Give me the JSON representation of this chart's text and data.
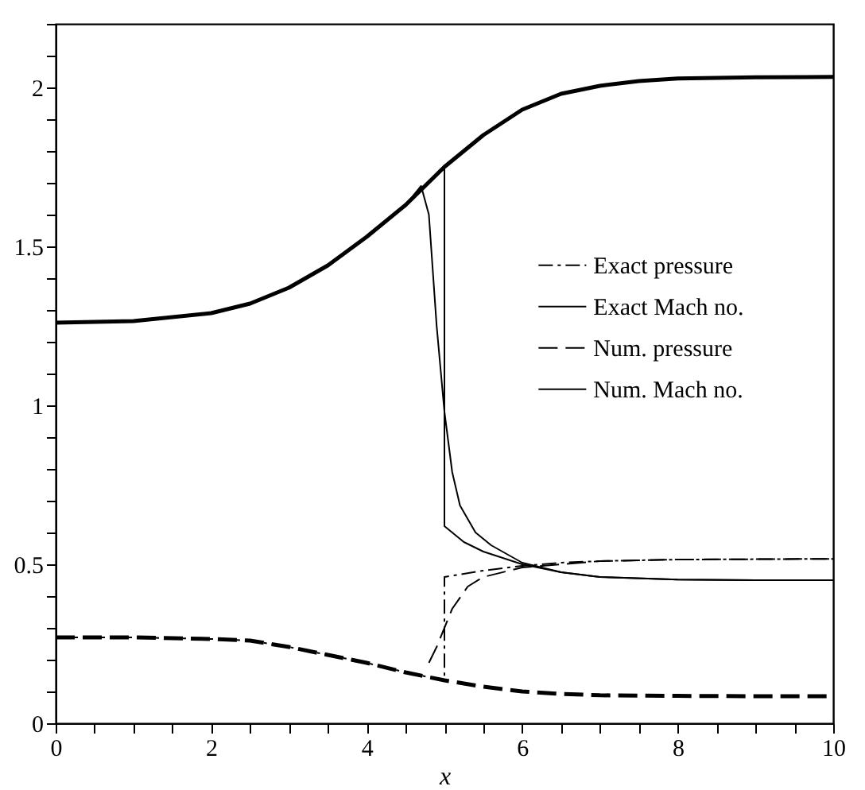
{
  "chart_data": {
    "type": "line",
    "xlabel": "x",
    "xlim": [
      0,
      10
    ],
    "ylim": [
      0,
      2.2
    ],
    "xticks": [
      0,
      {
        "value": 0.5,
        "label": null
      },
      {
        "value": 1,
        "label": null
      },
      {
        "value": 1.5,
        "label": null
      },
      2,
      {
        "value": 2.5,
        "label": null
      },
      {
        "value": 3,
        "label": null
      },
      {
        "value": 3.5,
        "label": null
      },
      4,
      {
        "value": 4.5,
        "label": null
      },
      {
        "value": 5,
        "label": null
      },
      {
        "value": 5.5,
        "label": null
      },
      6,
      {
        "value": 6.5,
        "label": null
      },
      {
        "value": 7,
        "label": null
      },
      {
        "value": 7.5,
        "label": null
      },
      8,
      {
        "value": 8.5,
        "label": null
      },
      {
        "value": 9,
        "label": null
      },
      {
        "value": 9.5,
        "label": null
      },
      10
    ],
    "yticks": [
      0,
      {
        "value": 0.1,
        "label": null
      },
      {
        "value": 0.2,
        "label": null
      },
      {
        "value": 0.3,
        "label": null
      },
      {
        "value": 0.4,
        "label": null
      },
      0.5,
      {
        "value": 0.6,
        "label": null
      },
      {
        "value": 0.7,
        "label": null
      },
      {
        "value": 0.8,
        "label": null
      },
      {
        "value": 0.9,
        "label": null
      },
      1,
      {
        "value": 1.1,
        "label": null
      },
      {
        "value": 1.2,
        "label": null
      },
      {
        "value": 1.3,
        "label": null
      },
      {
        "value": 1.4,
        "label": null
      },
      1.5,
      {
        "value": 1.6,
        "label": null
      },
      {
        "value": 1.7,
        "label": null
      },
      {
        "value": 1.8,
        "label": null
      },
      {
        "value": 1.9,
        "label": null
      },
      2,
      {
        "value": 2.1,
        "label": null
      },
      {
        "value": 2.2,
        "label": null
      }
    ],
    "grid": false,
    "legend": "right",
    "marker": "none",
    "series": [
      {
        "name": "Exact pressure",
        "color": "#000000",
        "line_style": "dashdot",
        "x": [
          0,
          1,
          2,
          2.5,
          3,
          3.5,
          4,
          4.5,
          5,
          5,
          5.25,
          5.5,
          6,
          6.5,
          7,
          8,
          9,
          10
        ],
        "values": [
          0.27,
          0.27,
          0.265,
          0.26,
          0.24,
          0.215,
          0.19,
          0.16,
          0.135,
          0.46,
          0.47,
          0.48,
          0.495,
          0.505,
          0.51,
          0.515,
          0.516,
          0.517
        ]
      },
      {
        "name": "Exact Mach no.",
        "color": "#000000",
        "line_style": "solid",
        "x": [
          0,
          1,
          2,
          2.5,
          3,
          3.5,
          4,
          4.5,
          5,
          5,
          5.25,
          5.5,
          6,
          6.5,
          7,
          8,
          9,
          10
        ],
        "values": [
          1.26,
          1.265,
          1.29,
          1.32,
          1.37,
          1.44,
          1.53,
          1.63,
          1.75,
          0.62,
          0.57,
          0.54,
          0.5,
          0.475,
          0.46,
          0.452,
          0.45,
          0.45
        ]
      },
      {
        "name": "Num. pressure",
        "color": "#000000",
        "line_style": "dashed",
        "x": [
          4.8,
          4.9,
          5,
          5.1,
          5.3,
          5.5,
          6,
          6.5,
          7,
          8,
          9,
          10
        ],
        "values": [
          0.19,
          0.24,
          0.3,
          0.36,
          0.43,
          0.46,
          0.49,
          0.5,
          0.51,
          0.515,
          0.516,
          0.517
        ]
      },
      {
        "name": "Num. Mach no.",
        "color": "#000000",
        "line_style": "solid",
        "x": [
          4.5,
          4.7,
          4.8,
          4.9,
          5,
          5.1,
          5.2,
          5.4,
          5.6,
          6,
          6.5,
          7,
          8,
          9,
          10
        ],
        "values": [
          1.63,
          1.69,
          1.6,
          1.25,
          0.98,
          0.79,
          0.685,
          0.6,
          0.56,
          0.505,
          0.475,
          0.46,
          0.452,
          0.45,
          0.45
        ]
      },
      {
        "color": "#000000",
        "line_style": "solid",
        "x": [
          0,
          1,
          2,
          2.5,
          3,
          3.5,
          4,
          4.5,
          5,
          5.5,
          6,
          6.5,
          7,
          7.5,
          8,
          9,
          10
        ],
        "values": [
          1.26,
          1.265,
          1.29,
          1.32,
          1.37,
          1.44,
          1.53,
          1.63,
          1.75,
          1.85,
          1.93,
          1.98,
          2.005,
          2.02,
          2.028,
          2.032,
          2.033
        ]
      },
      {
        "color": "#000000",
        "line_style": "dashed",
        "x": [
          0,
          1,
          2,
          2.5,
          3,
          3.5,
          4,
          4.5,
          5,
          5.5,
          6,
          6.5,
          7,
          8,
          9,
          10
        ],
        "values": [
          0.27,
          0.27,
          0.265,
          0.26,
          0.24,
          0.215,
          0.19,
          0.16,
          0.135,
          0.115,
          0.1,
          0.092,
          0.088,
          0.086,
          0.085,
          0.085
        ]
      }
    ]
  }
}
